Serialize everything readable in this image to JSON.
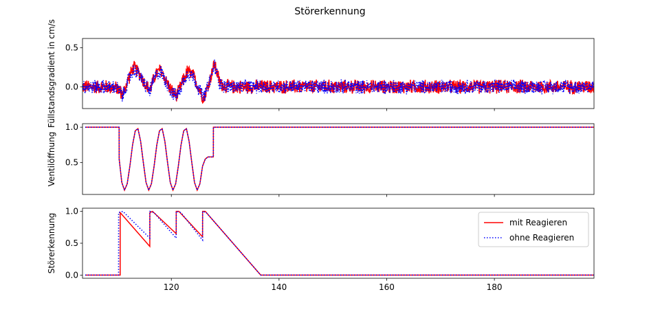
{
  "title": "Störerkennung",
  "colors": {
    "mit": "#ff0000",
    "ohne": "#0000ff",
    "axes": "#000000"
  },
  "chart_data": [
    {
      "type": "line",
      "panel": "top",
      "ylabel": "Füllstandsgradient in cm/s",
      "xlim": [
        103.5,
        198.5
      ],
      "ylim": [
        -0.28,
        0.62
      ],
      "yticks": [
        0.0,
        0.5
      ],
      "ytick_labels": [
        "0.0",
        "0.5"
      ],
      "xticks": [
        120,
        140,
        160,
        180
      ],
      "xticklabels_shown": false,
      "series": [
        {
          "name": "mit Reagieren",
          "style": "solid",
          "color": "#ff0000",
          "x": [
            104,
            108,
            110,
            111,
            112,
            113,
            114,
            115,
            116,
            117,
            118,
            119,
            120,
            121,
            122,
            123,
            124,
            125,
            126,
            127,
            128,
            129,
            130,
            198.5
          ],
          "y": [
            0.0,
            0.0,
            -0.02,
            -0.1,
            0.1,
            0.25,
            0.18,
            0.05,
            -0.05,
            0.15,
            0.22,
            0.08,
            -0.05,
            -0.12,
            0.05,
            0.2,
            0.15,
            0.0,
            -0.15,
            0.05,
            0.3,
            0.05,
            0.0,
            0.0
          ],
          "noise_amplitude": 0.1
        },
        {
          "name": "ohne Reagieren",
          "style": "dotted",
          "color": "#0000ff",
          "x": [
            104,
            108,
            110,
            111,
            112,
            113,
            114,
            115,
            116,
            117,
            118,
            119,
            120,
            121,
            122,
            123,
            124,
            125,
            126,
            127,
            128,
            129,
            130,
            198.5
          ],
          "y": [
            0.0,
            0.0,
            -0.02,
            -0.12,
            0.08,
            0.22,
            0.16,
            0.04,
            -0.06,
            0.13,
            0.2,
            0.06,
            -0.06,
            -0.13,
            0.04,
            0.18,
            0.13,
            -0.01,
            -0.14,
            0.04,
            0.28,
            0.04,
            0.0,
            0.0
          ],
          "noise_amplitude": 0.1
        }
      ]
    },
    {
      "type": "line",
      "panel": "middle",
      "ylabel": "Ventilöffnung",
      "xlim": [
        103.5,
        198.5
      ],
      "ylim": [
        0.05,
        1.05
      ],
      "yticks": [
        0.5,
        1.0
      ],
      "ytick_labels": [
        "0.5",
        "1.0"
      ],
      "xticks": [
        120,
        140,
        160,
        180
      ],
      "xticklabels_shown": false,
      "series": [
        {
          "name": "mit Reagieren",
          "style": "solid",
          "color": "#ff0000",
          "x": [
            104,
            110.3,
            110.31,
            110.8,
            111.3,
            111.8,
            112.3,
            112.8,
            113.3,
            113.8,
            114.3,
            114.8,
            115.3,
            115.8,
            116.3,
            116.8,
            117.3,
            117.8,
            118.3,
            118.8,
            119.3,
            119.8,
            120.3,
            120.8,
            121.3,
            121.8,
            122.3,
            122.8,
            123.3,
            123.8,
            124.3,
            124.8,
            125.3,
            125.8,
            126.3,
            126.8,
            127.3,
            127.8,
            127.81,
            198.5
          ],
          "y": [
            1.0,
            1.0,
            0.55,
            0.22,
            0.11,
            0.2,
            0.45,
            0.75,
            0.95,
            0.98,
            0.8,
            0.5,
            0.22,
            0.11,
            0.2,
            0.45,
            0.75,
            0.95,
            0.98,
            0.8,
            0.5,
            0.22,
            0.11,
            0.2,
            0.45,
            0.75,
            0.95,
            0.98,
            0.8,
            0.5,
            0.22,
            0.11,
            0.2,
            0.45,
            0.55,
            0.58,
            0.58,
            0.58,
            1.0,
            1.0
          ]
        },
        {
          "name": "ohne Reagieren",
          "style": "dotted",
          "color": "#0000ff",
          "x": [
            104,
            110.3,
            110.31,
            110.8,
            111.3,
            111.8,
            112.3,
            112.8,
            113.3,
            113.8,
            114.3,
            114.8,
            115.3,
            115.8,
            116.3,
            116.8,
            117.3,
            117.8,
            118.3,
            118.8,
            119.3,
            119.8,
            120.3,
            120.8,
            121.3,
            121.8,
            122.3,
            122.8,
            123.3,
            123.8,
            124.3,
            124.8,
            125.3,
            125.8,
            126.3,
            126.8,
            127.3,
            127.8,
            127.81,
            198.5
          ],
          "y": [
            1.0,
            1.0,
            0.55,
            0.22,
            0.11,
            0.2,
            0.45,
            0.75,
            0.95,
            0.98,
            0.8,
            0.5,
            0.22,
            0.11,
            0.2,
            0.45,
            0.75,
            0.95,
            0.98,
            0.8,
            0.5,
            0.22,
            0.11,
            0.2,
            0.45,
            0.75,
            0.95,
            0.98,
            0.8,
            0.5,
            0.22,
            0.11,
            0.2,
            0.45,
            0.55,
            0.58,
            0.58,
            0.58,
            1.0,
            1.0
          ]
        }
      ]
    },
    {
      "type": "line",
      "panel": "bottom",
      "ylabel": "Störerkennung",
      "xlim": [
        103.5,
        198.5
      ],
      "ylim": [
        -0.05,
        1.05
      ],
      "yticks": [
        0.0,
        0.5,
        1.0
      ],
      "ytick_labels": [
        "0.0",
        "0.5",
        "1.0"
      ],
      "xticks": [
        120,
        140,
        160,
        180
      ],
      "xtick_labels": [
        "120",
        "140",
        "160",
        "180"
      ],
      "xticklabels_shown": true,
      "legend": "upper-right",
      "series": [
        {
          "name": "mit Reagieren",
          "style": "solid",
          "color": "#ff0000",
          "x": [
            104,
            110.5,
            110.51,
            116.0,
            116.01,
            116.5,
            120.9,
            120.91,
            121.4,
            125.8,
            125.81,
            126.3,
            136.6,
            198.5
          ],
          "y": [
            0.0,
            0.0,
            0.98,
            0.45,
            0.98,
            1.0,
            0.65,
            1.0,
            1.0,
            0.6,
            1.0,
            1.0,
            0.0,
            0.0
          ]
        },
        {
          "name": "ohne Reagieren",
          "style": "dotted",
          "color": "#0000ff",
          "x": [
            104,
            110.2,
            110.21,
            111.0,
            116.0,
            116.01,
            116.8,
            120.9,
            120.91,
            121.8,
            125.8,
            125.81,
            126.5,
            136.6,
            198.5
          ],
          "y": [
            0.0,
            0.0,
            0.98,
            1.0,
            0.58,
            1.0,
            0.98,
            0.58,
            1.0,
            0.98,
            0.55,
            1.0,
            0.98,
            0.0,
            0.0
          ]
        }
      ]
    }
  ]
}
